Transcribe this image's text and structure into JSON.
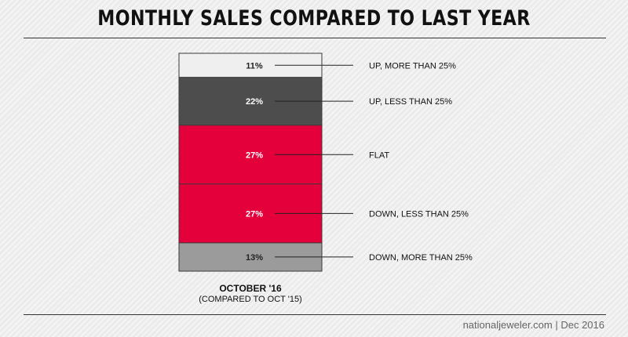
{
  "chart_data": {
    "type": "bar",
    "stacked": true,
    "title": "MONTHLY SALES COMPARED TO LAST YEAR",
    "categories": [
      "OCTOBER '16"
    ],
    "xlabel_line1": "OCTOBER '16",
    "xlabel_line2": "(COMPARED TO OCT '15)",
    "unit": "%",
    "series": [
      {
        "name": "UP, MORE THAN 25%",
        "value": 11,
        "label": "11%",
        "color": "#efefef",
        "text_color": "#222222"
      },
      {
        "name": "UP, LESS THAN 25%",
        "value": 22,
        "label": "22%",
        "color": "#4d4d4d",
        "text_color": "#ffffff"
      },
      {
        "name": "FLAT",
        "value": 27,
        "label": "27%",
        "color": "#e4003a",
        "text_color": "#ffffff"
      },
      {
        "name": "DOWN, LESS THAN 25%",
        "value": 27,
        "label": "27%",
        "color": "#e4003a",
        "text_color": "#ffffff"
      },
      {
        "name": "DOWN, MORE THAN 25%",
        "value": 13,
        "label": "13%",
        "color": "#9b9b9b",
        "text_color": "#222222"
      }
    ]
  },
  "source": "nationaljeweler.com | Dec 2016"
}
